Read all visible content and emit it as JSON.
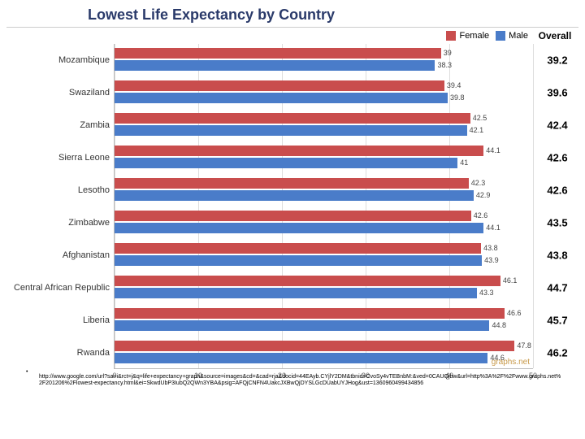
{
  "title": "Lowest Life Expectancy by Country",
  "legend": {
    "female": {
      "label": "Female",
      "color": "#c94d4d"
    },
    "male": {
      "label": "Male",
      "color": "#4a7cc9"
    },
    "overall": "Overall"
  },
  "xaxis": {
    "min": 0,
    "max": 50,
    "ticks": [
      0,
      10,
      20,
      30,
      40,
      50
    ]
  },
  "rows": [
    {
      "country": "Mozambique",
      "female": 39.0,
      "male": 38.3,
      "overall": "39.2",
      "female_label": "39",
      "male_label": "38.3"
    },
    {
      "country": "Swaziland",
      "female": 39.4,
      "male": 39.8,
      "overall": "39.6",
      "female_label": "39.4",
      "male_label": "39.8"
    },
    {
      "country": "Zambia",
      "female": 42.5,
      "male": 42.1,
      "overall": "42.4",
      "female_label": "42.5",
      "male_label": "42.1"
    },
    {
      "country": "Sierra Leone",
      "female": 44.1,
      "male": 41.0,
      "overall": "42.6",
      "female_label": "44.1",
      "male_label": "41"
    },
    {
      "country": "Lesotho",
      "female": 42.3,
      "male": 42.9,
      "overall": "42.6",
      "female_label": "42.3",
      "male_label": "42.9"
    },
    {
      "country": "Zimbabwe",
      "female": 42.6,
      "male": 44.1,
      "overall": "43.5",
      "female_label": "42.6",
      "male_label": "44.1"
    },
    {
      "country": "Afghanistan",
      "female": 43.8,
      "male": 43.9,
      "overall": "43.8",
      "female_label": "43.8",
      "male_label": "43.9"
    },
    {
      "country": "Central African Republic",
      "female": 46.1,
      "male": 43.3,
      "overall": "44.7",
      "female_label": "46.1",
      "male_label": "43.3"
    },
    {
      "country": "Liberia",
      "female": 46.6,
      "male": 44.8,
      "overall": "45.7",
      "female_label": "46.6",
      "male_label": "44.8"
    },
    {
      "country": "Rwanda",
      "female": 47.8,
      "male": 44.6,
      "overall": "46.2",
      "female_label": "47.8",
      "male_label": "44.6"
    }
  ],
  "watermark": "graphs.net",
  "credit": "http://www.google.com/url?sa=i&rct=j&q=life+expectancy+graph&source=images&cd=&cad=rja&docid=44EAyb.CYjlY2DM&tbnid=CvoSy4vTEBnbM:&ved=0CAUQjhw&url=http%3A%2F%2Fwww.graphs.net%2F201206%2Flowest-expectancy.html&ei=SkwdUbP3IubQ2QWn3YBA&psig=AFQjCNFN4UakcJXBwQjDYSLGcDUabUYJHog&ust=1360960499434856"
}
